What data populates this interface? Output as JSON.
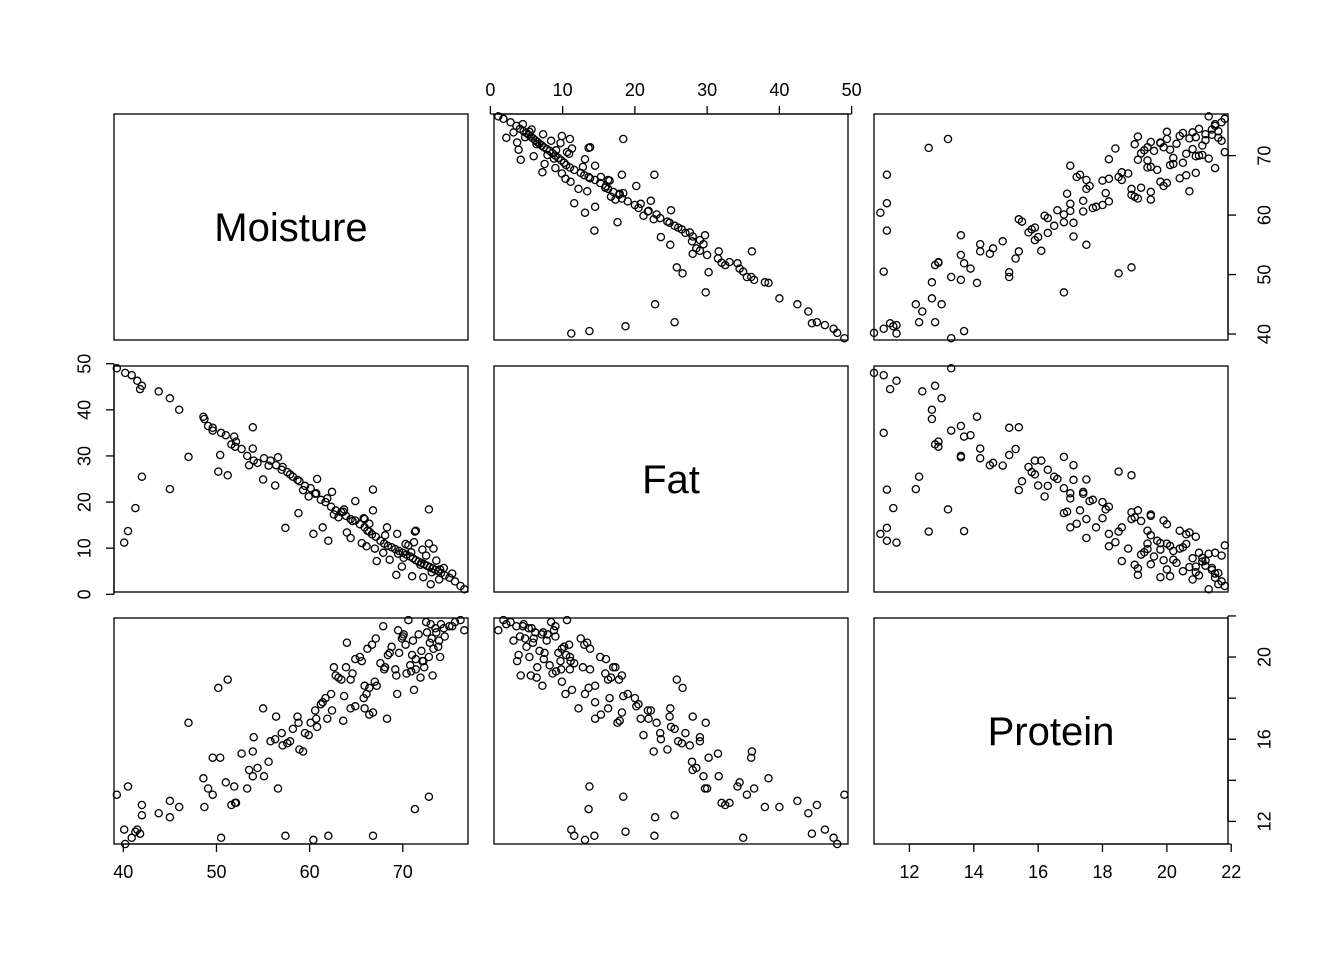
{
  "chart_data": {
    "type": "scatter",
    "variables": [
      "Moisture",
      "Fat",
      "Protein"
    ],
    "ranges": {
      "Moisture": [
        39.0,
        77.0
      ],
      "Fat": [
        0.5,
        49.5
      ],
      "Protein": [
        10.9,
        21.9
      ]
    },
    "ticks": {
      "Moisture": [
        40,
        50,
        60,
        70
      ],
      "Fat": [
        0,
        10,
        20,
        30,
        40,
        50
      ],
      "Protein": [
        12,
        14,
        16,
        18,
        20,
        22
      ]
    },
    "tick_labels": {
      "moisture_bottom": [
        "40",
        "50",
        "60",
        "70"
      ],
      "fat_top": [
        "0",
        "10",
        "20",
        "30",
        "40",
        "50"
      ],
      "fat_left": [
        "0",
        "10",
        "20",
        "30",
        "40",
        "50"
      ],
      "moisture_right": [
        "40",
        "50",
        "60",
        "70"
      ],
      "protein_bottom": [
        "12",
        "14",
        "16",
        "18",
        "20",
        "22"
      ],
      "protein_right": [
        "12",
        "16",
        "20"
      ]
    },
    "observations": [
      [
        39.3,
        49.0,
        13.3
      ],
      [
        40.2,
        48.0,
        10.9
      ],
      [
        40.9,
        47.5,
        11.2
      ],
      [
        41.5,
        46.3,
        11.6
      ],
      [
        42.0,
        45.2,
        12.8
      ],
      [
        41.8,
        44.5,
        11.4
      ],
      [
        43.8,
        44.0,
        12.4
      ],
      [
        45.0,
        42.5,
        13.0
      ],
      [
        46.0,
        40.0,
        12.7
      ],
      [
        48.7,
        38.0,
        12.7
      ],
      [
        49.1,
        36.5,
        13.6
      ],
      [
        49.6,
        35.5,
        13.3
      ],
      [
        50.5,
        35.0,
        11.2
      ],
      [
        51.0,
        34.5,
        13.9
      ],
      [
        51.6,
        32.5,
        12.8
      ],
      [
        52.0,
        32.0,
        12.9
      ],
      [
        52.7,
        31.5,
        15.3
      ],
      [
        53.3,
        30.0,
        13.6
      ],
      [
        53.5,
        28.0,
        14.5
      ],
      [
        54.4,
        28.5,
        14.6
      ],
      [
        55.1,
        29.5,
        14.2
      ],
      [
        55.8,
        29.0,
        15.9
      ],
      [
        56.4,
        28.0,
        17.1
      ],
      [
        57.0,
        27.0,
        16.3
      ],
      [
        57.6,
        26.5,
        15.8
      ],
      [
        58.2,
        25.5,
        16.5
      ],
      [
        58.9,
        24.5,
        15.5
      ],
      [
        59.5,
        23.5,
        16.3
      ],
      [
        60.1,
        23.0,
        16.8
      ],
      [
        60.6,
        21.8,
        17.4
      ],
      [
        61.2,
        20.5,
        17.7
      ],
      [
        61.7,
        20.0,
        18.0
      ],
      [
        62.3,
        19.0,
        18.2
      ],
      [
        62.8,
        18.2,
        19.1
      ],
      [
        63.4,
        17.8,
        18.9
      ],
      [
        63.9,
        17.0,
        19.5
      ],
      [
        64.4,
        16.3,
        18.9
      ],
      [
        64.9,
        16.0,
        19.9
      ],
      [
        65.4,
        15.2,
        20.0
      ],
      [
        65.9,
        14.5,
        18.6
      ],
      [
        66.2,
        13.8,
        20.4
      ],
      [
        66.7,
        13.0,
        20.6
      ],
      [
        67.1,
        12.5,
        20.9
      ],
      [
        67.6,
        11.6,
        19.7
      ],
      [
        68.0,
        11.0,
        19.4
      ],
      [
        68.4,
        10.5,
        20.1
      ],
      [
        68.8,
        10.2,
        20.5
      ],
      [
        69.2,
        9.8,
        19.4
      ],
      [
        69.6,
        9.4,
        20.2
      ],
      [
        70.0,
        9.0,
        21.0
      ],
      [
        70.4,
        8.6,
        19.2
      ],
      [
        70.8,
        8.2,
        19.6
      ],
      [
        71.1,
        7.8,
        20.8
      ],
      [
        71.4,
        7.4,
        19.9
      ],
      [
        71.7,
        7.1,
        21.1
      ],
      [
        72.0,
        6.8,
        20.3
      ],
      [
        72.3,
        6.5,
        19.5
      ],
      [
        72.6,
        6.2,
        21.2
      ],
      [
        72.9,
        5.9,
        20.7
      ],
      [
        73.2,
        5.6,
        19.1
      ],
      [
        73.5,
        5.3,
        21.4
      ],
      [
        73.8,
        5.0,
        20.5
      ],
      [
        74.1,
        4.6,
        21.6
      ],
      [
        74.5,
        4.1,
        21.0
      ],
      [
        75.0,
        3.6,
        21.5
      ],
      [
        75.6,
        2.8,
        21.7
      ],
      [
        76.2,
        1.8,
        21.8
      ],
      [
        76.6,
        1.1,
        21.3
      ],
      [
        71.4,
        13.8,
        19.4
      ],
      [
        72.8,
        11.0,
        20.0
      ],
      [
        68.1,
        12.8,
        19.5
      ],
      [
        70.3,
        10.9,
        20.6
      ],
      [
        69.5,
        8.8,
        21.3
      ],
      [
        73.9,
        3.2,
        20.8
      ],
      [
        66.8,
        18.2,
        17.3
      ],
      [
        65.8,
        16.5,
        18.0
      ],
      [
        64.6,
        15.9,
        19.2
      ],
      [
        62.4,
        22.2,
        17.4
      ],
      [
        60.8,
        25.0,
        16.6
      ],
      [
        57.1,
        27.6,
        15.7
      ],
      [
        54.0,
        29.0,
        16.1
      ],
      [
        52.1,
        33.1,
        12.9
      ],
      [
        50.4,
        30.2,
        15.1
      ],
      [
        48.6,
        38.5,
        14.1
      ],
      [
        55.0,
        24.9,
        17.5
      ],
      [
        56.6,
        29.7,
        13.6
      ],
      [
        58.8,
        17.6,
        16.8
      ],
      [
        61.4,
        14.5,
        17.8
      ],
      [
        63.1,
        16.7,
        19.0
      ],
      [
        67.2,
        7.2,
        18.6
      ],
      [
        69.3,
        4.2,
        19.1
      ],
      [
        71.0,
        3.9,
        20.1
      ],
      [
        72.2,
        3.7,
        19.8
      ],
      [
        73.1,
        4.8,
        20.9
      ],
      [
        72.5,
        8.4,
        21.7
      ],
      [
        70.6,
        10.6,
        21.8
      ],
      [
        69.9,
        6.0,
        20.9
      ],
      [
        68.6,
        7.5,
        20.2
      ],
      [
        66.1,
        10.4,
        18.2
      ],
      [
        65.6,
        11.1,
        19.8
      ],
      [
        64.0,
        13.4,
        20.7
      ],
      [
        62.6,
        17.3,
        19.5
      ],
      [
        67.9,
        9.0,
        21.5
      ],
      [
        74.4,
        5.7,
        21.4
      ],
      [
        73.6,
        7.3,
        21.2
      ],
      [
        71.9,
        6.4,
        19.0
      ],
      [
        70.9,
        9.1,
        19.3
      ],
      [
        66.4,
        13.6,
        18.5
      ],
      [
        63.7,
        18.4,
        18.1
      ],
      [
        61.9,
        20.8,
        17.0
      ],
      [
        59.9,
        21.2,
        16.2
      ],
      [
        57.9,
        26.0,
        15.9
      ],
      [
        55.6,
        27.9,
        14.9
      ],
      [
        53.9,
        31.6,
        14.2
      ],
      [
        51.9,
        34.2,
        13.7
      ],
      [
        60.4,
        13.1,
        11.1
      ],
      [
        62.0,
        11.6,
        11.3
      ],
      [
        57.4,
        14.4,
        11.3
      ],
      [
        66.8,
        22.7,
        11.3
      ],
      [
        71.3,
        13.6,
        12.6
      ],
      [
        72.8,
        18.4,
        13.2
      ],
      [
        64.9,
        20.2,
        17.6
      ],
      [
        58.7,
        24.8,
        17.1
      ],
      [
        53.9,
        36.2,
        15.4
      ],
      [
        51.2,
        25.8,
        18.9
      ],
      [
        49.6,
        36.1,
        15.1
      ],
      [
        50.2,
        26.6,
        18.5
      ],
      [
        47.0,
        29.8,
        16.8
      ],
      [
        45.0,
        22.8,
        12.2
      ],
      [
        42.0,
        25.5,
        12.3
      ],
      [
        41.3,
        18.7,
        11.5
      ],
      [
        40.5,
        13.7,
        13.7
      ],
      [
        40.1,
        11.2,
        11.6
      ],
      [
        60.7,
        21.9,
        17.0
      ],
      [
        65.9,
        16.3,
        17.5
      ],
      [
        69.4,
        13.1,
        18.2
      ],
      [
        72.1,
        9.7,
        19.8
      ],
      [
        73.3,
        9.9,
        20.4
      ],
      [
        74.0,
        5.4,
        20.0
      ],
      [
        73.0,
        2.2,
        21.6
      ],
      [
        71.2,
        11.3,
        18.4
      ],
      [
        68.3,
        14.5,
        17.0
      ],
      [
        66.4,
        15.3,
        17.2
      ],
      [
        63.6,
        17.9,
        16.9
      ],
      [
        64.4,
        12.2,
        17.5
      ],
      [
        67.0,
        9.9,
        18.8
      ],
      [
        70.1,
        7.9,
        21.1
      ],
      [
        75.3,
        4.5,
        21.5
      ],
      [
        59.3,
        22.6,
        15.4
      ],
      [
        56.3,
        23.6,
        16.0
      ]
    ]
  }
}
